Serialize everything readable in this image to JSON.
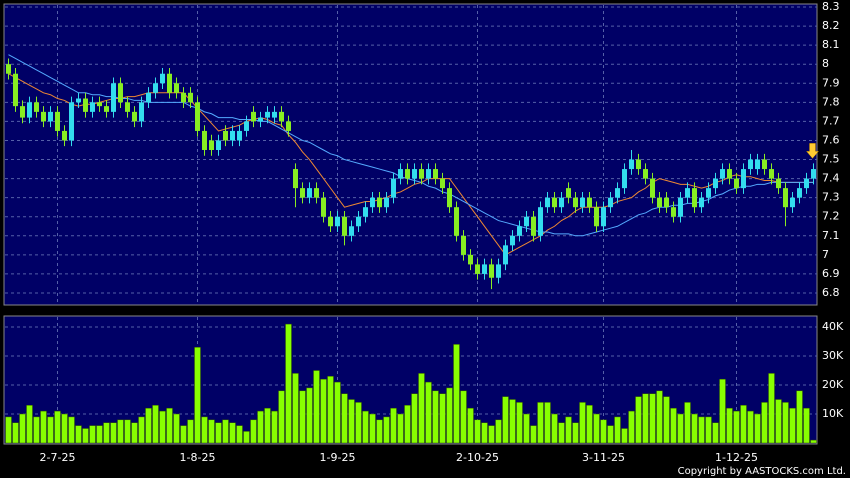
{
  "chart_data": {
    "type": "candlestick",
    "copyright": "Copyright by AASTOCKS.com Ltd.",
    "categories": [
      null,
      null,
      null,
      null,
      null,
      null,
      null,
      "2-7-25",
      null,
      null,
      null,
      null,
      null,
      null,
      null,
      null,
      null,
      null,
      null,
      null,
      null,
      null,
      null,
      null,
      null,
      null,
      null,
      "1-8-25",
      null,
      null,
      null,
      null,
      null,
      null,
      null,
      null,
      null,
      null,
      null,
      null,
      null,
      null,
      null,
      null,
      null,
      null,
      null,
      "1-9-25",
      null,
      null,
      null,
      null,
      null,
      null,
      null,
      null,
      null,
      null,
      null,
      null,
      null,
      null,
      null,
      null,
      null,
      null,
      null,
      "2-10-25",
      null,
      null,
      null,
      null,
      null,
      null,
      null,
      null,
      null,
      null,
      null,
      null,
      null,
      null,
      null,
      null,
      null,
      "3-11-25",
      null,
      null,
      null,
      null,
      null,
      null,
      null,
      null,
      null,
      null,
      null,
      null,
      null,
      null,
      null,
      null,
      null,
      null,
      "1-12-25",
      null,
      null,
      null,
      null,
      null,
      null,
      null,
      null,
      null,
      null,
      null
    ],
    "open": [
      8.0,
      7.95,
      7.78,
      7.72,
      7.8,
      7.75,
      7.7,
      7.75,
      7.65,
      7.6,
      7.8,
      7.82,
      7.75,
      7.8,
      7.78,
      7.75,
      7.9,
      7.8,
      7.75,
      7.7,
      7.8,
      7.85,
      7.9,
      7.95,
      7.9,
      7.85,
      7.85,
      7.8,
      7.65,
      7.6,
      7.55,
      7.65,
      7.6,
      7.6,
      7.65,
      7.75,
      7.7,
      7.72,
      7.72,
      7.75,
      7.7,
      7.45,
      7.35,
      7.3,
      7.35,
      7.3,
      7.2,
      7.15,
      7.2,
      7.1,
      7.15,
      7.2,
      7.25,
      7.3,
      7.25,
      7.3,
      7.4,
      7.45,
      7.4,
      7.45,
      7.4,
      7.45,
      7.4,
      7.35,
      7.25,
      7.1,
      7.0,
      6.95,
      6.9,
      6.95,
      6.88,
      6.95,
      7.05,
      7.1,
      7.15,
      7.2,
      7.1,
      7.25,
      7.3,
      7.25,
      7.35,
      7.3,
      7.25,
      7.3,
      7.25,
      7.15,
      7.25,
      7.3,
      7.35,
      7.45,
      7.5,
      7.45,
      7.4,
      7.3,
      7.3,
      7.25,
      7.2,
      7.3,
      7.35,
      7.25,
      7.3,
      7.35,
      7.4,
      7.45,
      7.4,
      7.35,
      7.45,
      7.45,
      7.5,
      7.45,
      7.4,
      7.35,
      7.25,
      7.3,
      7.35,
      7.4
    ],
    "high": [
      8.03,
      7.98,
      7.81,
      7.83,
      7.83,
      7.78,
      7.78,
      7.78,
      7.68,
      7.83,
      7.85,
      7.85,
      7.83,
      7.83,
      7.81,
      7.93,
      7.93,
      7.83,
      7.78,
      7.83,
      7.88,
      7.93,
      7.98,
      7.98,
      7.93,
      7.88,
      7.88,
      7.83,
      7.68,
      7.63,
      7.63,
      7.68,
      7.68,
      7.68,
      7.73,
      7.78,
      7.75,
      7.78,
      7.78,
      7.78,
      7.73,
      7.48,
      7.38,
      7.38,
      7.38,
      7.33,
      7.23,
      7.23,
      7.23,
      7.18,
      7.23,
      7.28,
      7.33,
      7.33,
      7.33,
      7.43,
      7.48,
      7.48,
      7.48,
      7.48,
      7.48,
      7.48,
      7.43,
      7.38,
      7.28,
      7.13,
      7.03,
      6.98,
      6.98,
      6.98,
      6.98,
      7.08,
      7.13,
      7.18,
      7.23,
      7.23,
      7.28,
      7.33,
      7.33,
      7.33,
      7.38,
      7.33,
      7.33,
      7.33,
      7.28,
      7.28,
      7.33,
      7.38,
      7.48,
      7.55,
      7.53,
      7.48,
      7.43,
      7.33,
      7.33,
      7.28,
      7.33,
      7.38,
      7.38,
      7.33,
      7.38,
      7.43,
      7.48,
      7.48,
      7.43,
      7.48,
      7.53,
      7.53,
      7.53,
      7.48,
      7.43,
      7.38,
      7.33,
      7.38,
      7.43,
      7.48
    ],
    "low": [
      7.92,
      7.75,
      7.69,
      7.69,
      7.72,
      7.67,
      7.67,
      7.62,
      7.57,
      7.57,
      7.77,
      7.72,
      7.72,
      7.75,
      7.72,
      7.72,
      7.77,
      7.72,
      7.67,
      7.67,
      7.77,
      7.82,
      7.87,
      7.82,
      7.82,
      7.77,
      7.77,
      7.62,
      7.52,
      7.52,
      7.52,
      7.57,
      7.57,
      7.57,
      7.62,
      7.67,
      7.67,
      7.69,
      7.69,
      7.67,
      7.62,
      7.25,
      7.27,
      7.27,
      7.27,
      7.17,
      7.12,
      7.12,
      7.05,
      7.07,
      7.12,
      7.17,
      7.22,
      7.22,
      7.22,
      7.27,
      7.37,
      7.37,
      7.37,
      7.37,
      7.37,
      7.37,
      7.32,
      7.22,
      7.07,
      6.97,
      6.92,
      6.87,
      6.87,
      6.82,
      6.85,
      6.92,
      7.02,
      7.07,
      7.12,
      7.07,
      7.07,
      7.22,
      7.22,
      7.22,
      7.27,
      7.22,
      7.22,
      7.22,
      7.12,
      7.12,
      7.22,
      7.27,
      7.32,
      7.42,
      7.42,
      7.37,
      7.27,
      7.22,
      7.22,
      7.17,
      7.17,
      7.27,
      7.22,
      7.22,
      7.27,
      7.32,
      7.37,
      7.37,
      7.32,
      7.32,
      7.42,
      7.42,
      7.42,
      7.37,
      7.32,
      7.15,
      7.22,
      7.27,
      7.32,
      7.37
    ],
    "close": [
      7.95,
      7.78,
      7.72,
      7.8,
      7.75,
      7.7,
      7.75,
      7.65,
      7.6,
      7.8,
      7.82,
      7.75,
      7.8,
      7.78,
      7.75,
      7.9,
      7.8,
      7.75,
      7.7,
      7.8,
      7.85,
      7.9,
      7.95,
      7.85,
      7.85,
      7.8,
      7.8,
      7.65,
      7.55,
      7.55,
      7.6,
      7.6,
      7.65,
      7.65,
      7.7,
      7.7,
      7.72,
      7.75,
      7.75,
      7.7,
      7.65,
      7.35,
      7.3,
      7.35,
      7.3,
      7.2,
      7.15,
      7.2,
      7.1,
      7.15,
      7.2,
      7.25,
      7.3,
      7.25,
      7.3,
      7.4,
      7.45,
      7.4,
      7.45,
      7.4,
      7.45,
      7.4,
      7.35,
      7.25,
      7.1,
      7.0,
      6.95,
      6.9,
      6.95,
      6.88,
      6.95,
      7.05,
      7.1,
      7.15,
      7.2,
      7.1,
      7.25,
      7.3,
      7.25,
      7.3,
      7.3,
      7.25,
      7.3,
      7.25,
      7.15,
      7.25,
      7.3,
      7.35,
      7.45,
      7.5,
      7.45,
      7.4,
      7.3,
      7.25,
      7.25,
      7.2,
      7.3,
      7.35,
      7.25,
      7.3,
      7.35,
      7.4,
      7.45,
      7.4,
      7.35,
      7.45,
      7.5,
      7.5,
      7.45,
      7.4,
      7.35,
      7.25,
      7.3,
      7.35,
      7.4,
      7.45
    ],
    "up_color": "#33ddee",
    "down_color": "#88ee22",
    "lines": [
      {
        "color": "#ee8833",
        "values": [
          7.95,
          7.93,
          7.91,
          7.89,
          7.87,
          7.85,
          7.84,
          7.82,
          7.81,
          7.79,
          7.78,
          7.79,
          7.79,
          7.8,
          7.81,
          7.82,
          7.82,
          7.83,
          7.83,
          7.84,
          7.85,
          7.85,
          7.85,
          7.85,
          7.85,
          7.85,
          7.81,
          7.77,
          7.73,
          7.69,
          7.65,
          7.66,
          7.67,
          7.68,
          7.7,
          7.71,
          7.72,
          7.71,
          7.69,
          7.68,
          7.63,
          7.59,
          7.54,
          7.5,
          7.45,
          7.4,
          7.35,
          7.3,
          7.25,
          7.26,
          7.27,
          7.28,
          7.28,
          7.29,
          7.3,
          7.32,
          7.33,
          7.35,
          7.37,
          7.38,
          7.4,
          7.4,
          7.4,
          7.4,
          7.35,
          7.3,
          7.25,
          7.2,
          7.15,
          7.1,
          7.05,
          7.0,
          7.02,
          7.04,
          7.06,
          7.08,
          7.1,
          7.13,
          7.15,
          7.18,
          7.2,
          7.23,
          7.25,
          7.25,
          7.25,
          7.25,
          7.26,
          7.28,
          7.29,
          7.3,
          7.33,
          7.35,
          7.38,
          7.4,
          7.39,
          7.38,
          7.37,
          7.37,
          7.36,
          7.35,
          7.36,
          7.38,
          7.39,
          7.41,
          7.42,
          7.41,
          7.41,
          7.4,
          7.39,
          7.39,
          7.38,
          7.38,
          7.38,
          7.38,
          7.38,
          7.38
        ]
      },
      {
        "color": "#55aaff",
        "values": [
          8.05,
          8.03,
          8.01,
          7.99,
          7.97,
          7.95,
          7.93,
          7.91,
          7.89,
          7.87,
          7.85,
          7.85,
          7.84,
          7.84,
          7.83,
          7.83,
          7.82,
          7.82,
          7.81,
          7.81,
          7.8,
          7.8,
          7.8,
          7.8,
          7.8,
          7.8,
          7.78,
          7.77,
          7.75,
          7.74,
          7.72,
          7.72,
          7.72,
          7.71,
          7.71,
          7.71,
          7.7,
          7.7,
          7.68,
          7.66,
          7.64,
          7.62,
          7.6,
          7.59,
          7.57,
          7.55,
          7.53,
          7.52,
          7.5,
          7.49,
          7.48,
          7.47,
          7.46,
          7.45,
          7.44,
          7.43,
          7.41,
          7.4,
          7.39,
          7.38,
          7.36,
          7.35,
          7.33,
          7.32,
          7.3,
          7.28,
          7.26,
          7.24,
          7.22,
          7.2,
          7.18,
          7.17,
          7.16,
          7.15,
          7.14,
          7.13,
          7.12,
          7.12,
          7.11,
          7.11,
          7.11,
          7.1,
          7.1,
          7.11,
          7.12,
          7.13,
          7.14,
          7.15,
          7.17,
          7.19,
          7.21,
          7.22,
          7.24,
          7.25,
          7.25,
          7.26,
          7.26,
          7.27,
          7.27,
          7.28,
          7.29,
          7.31,
          7.32,
          7.34,
          7.35,
          7.36,
          7.36,
          7.37,
          7.37,
          7.38,
          7.38,
          7.38,
          7.38,
          7.38,
          7.38,
          7.38
        ]
      }
    ],
    "ylim": [
      6.8,
      8.3
    ],
    "yticks": [
      6.8,
      6.9,
      7,
      7.1,
      7.2,
      7.3,
      7.4,
      7.5,
      7.6,
      7.7,
      7.8,
      7.9,
      8,
      8.1,
      8.2,
      8.3
    ],
    "volume": [
      9000,
      7000,
      10000,
      13000,
      9000,
      11000,
      9000,
      11000,
      10000,
      9000,
      6000,
      5000,
      6000,
      6000,
      7000,
      7000,
      8000,
      8000,
      7000,
      9000,
      12000,
      13000,
      11000,
      12000,
      10000,
      6000,
      8000,
      33000,
      9000,
      8000,
      7000,
      8000,
      7000,
      6000,
      4000,
      8000,
      11000,
      12000,
      11000,
      18000,
      41000,
      24000,
      18000,
      19000,
      25000,
      22000,
      23000,
      21000,
      17000,
      15000,
      14000,
      11000,
      10000,
      8000,
      9000,
      12000,
      10000,
      13000,
      17000,
      24000,
      21000,
      18000,
      17000,
      19000,
      34000,
      18000,
      12000,
      8000,
      7000,
      6000,
      8000,
      16000,
      15000,
      14000,
      10000,
      6000,
      14000,
      14000,
      10000,
      7000,
      9000,
      7000,
      14000,
      13000,
      10000,
      8000,
      6000,
      9000,
      5000,
      11000,
      16000,
      17000,
      17000,
      18000,
      16000,
      12000,
      10000,
      14000,
      10000,
      9000,
      9000,
      7000,
      22000,
      12000,
      11000,
      13000,
      11000,
      10000,
      14000,
      24000,
      15000,
      14000,
      12000,
      18000,
      12000,
      1000
    ],
    "volume_color": "#88ff00",
    "y2lim": [
      0,
      40000
    ],
    "y2ticks": [
      {
        "value": 10000,
        "label": "10K"
      },
      {
        "value": 20000,
        "label": "20K"
      },
      {
        "value": 30000,
        "label": "30K"
      },
      {
        "value": 40000,
        "label": "40K"
      }
    ],
    "grid": true
  }
}
